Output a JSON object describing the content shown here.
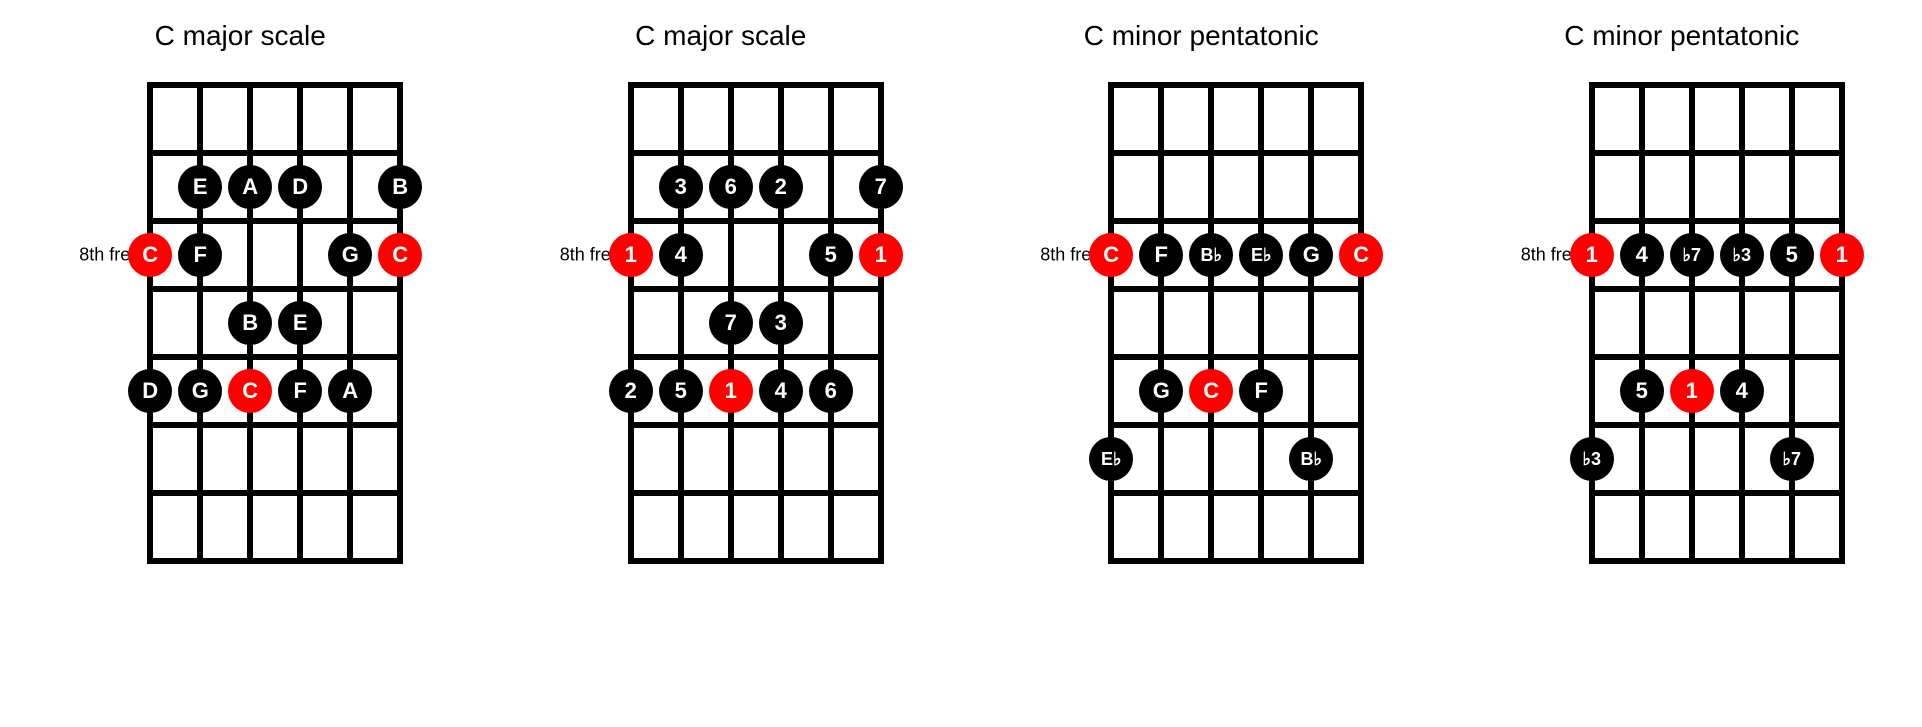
{
  "layout": {
    "strings": 6,
    "frets": 7,
    "string_spacing": 50,
    "fret_spacing": 68,
    "line_width": 6,
    "note_radius": 22,
    "note_fontsize": 22,
    "note_fontsize_flat": 18,
    "title_fontsize": 28,
    "fretlabel_fontsize": 18,
    "background": "#ffffff",
    "line_color": "#000000",
    "fret_label_row": 3
  },
  "colors": {
    "root": "#ff0000",
    "normal": "#000000",
    "text": "#ffffff"
  },
  "fret_label": "8th fret",
  "diagrams": [
    {
      "title": "C major scale",
      "notes": [
        {
          "string": 1,
          "fret": 2,
          "label": "E",
          "root": false
        },
        {
          "string": 2,
          "fret": 2,
          "label": "A",
          "root": false
        },
        {
          "string": 3,
          "fret": 2,
          "label": "D",
          "root": false
        },
        {
          "string": 5,
          "fret": 2,
          "label": "B",
          "root": false
        },
        {
          "string": 0,
          "fret": 3,
          "label": "C",
          "root": true
        },
        {
          "string": 1,
          "fret": 3,
          "label": "F",
          "root": false
        },
        {
          "string": 4,
          "fret": 3,
          "label": "G",
          "root": false
        },
        {
          "string": 5,
          "fret": 3,
          "label": "C",
          "root": true
        },
        {
          "string": 2,
          "fret": 4,
          "label": "B",
          "root": false
        },
        {
          "string": 3,
          "fret": 4,
          "label": "E",
          "root": false
        },
        {
          "string": 0,
          "fret": 5,
          "label": "D",
          "root": false
        },
        {
          "string": 1,
          "fret": 5,
          "label": "G",
          "root": false
        },
        {
          "string": 2,
          "fret": 5,
          "label": "C",
          "root": true
        },
        {
          "string": 3,
          "fret": 5,
          "label": "F",
          "root": false
        },
        {
          "string": 4,
          "fret": 5,
          "label": "A",
          "root": false
        }
      ]
    },
    {
      "title": "C major scale",
      "notes": [
        {
          "string": 1,
          "fret": 2,
          "label": "3",
          "root": false
        },
        {
          "string": 2,
          "fret": 2,
          "label": "6",
          "root": false
        },
        {
          "string": 3,
          "fret": 2,
          "label": "2",
          "root": false
        },
        {
          "string": 5,
          "fret": 2,
          "label": "7",
          "root": false
        },
        {
          "string": 0,
          "fret": 3,
          "label": "1",
          "root": true
        },
        {
          "string": 1,
          "fret": 3,
          "label": "4",
          "root": false
        },
        {
          "string": 4,
          "fret": 3,
          "label": "5",
          "root": false
        },
        {
          "string": 5,
          "fret": 3,
          "label": "1",
          "root": true
        },
        {
          "string": 2,
          "fret": 4,
          "label": "7",
          "root": false
        },
        {
          "string": 3,
          "fret": 4,
          "label": "3",
          "root": false
        },
        {
          "string": 0,
          "fret": 5,
          "label": "2",
          "root": false
        },
        {
          "string": 1,
          "fret": 5,
          "label": "5",
          "root": false
        },
        {
          "string": 2,
          "fret": 5,
          "label": "1",
          "root": true
        },
        {
          "string": 3,
          "fret": 5,
          "label": "4",
          "root": false
        },
        {
          "string": 4,
          "fret": 5,
          "label": "6",
          "root": false
        }
      ]
    },
    {
      "title": "C minor pentatonic",
      "notes": [
        {
          "string": 0,
          "fret": 3,
          "label": "C",
          "root": true
        },
        {
          "string": 1,
          "fret": 3,
          "label": "F",
          "root": false
        },
        {
          "string": 2,
          "fret": 3,
          "label": "B♭",
          "root": false
        },
        {
          "string": 3,
          "fret": 3,
          "label": "E♭",
          "root": false
        },
        {
          "string": 4,
          "fret": 3,
          "label": "G",
          "root": false
        },
        {
          "string": 5,
          "fret": 3,
          "label": "C",
          "root": true
        },
        {
          "string": 1,
          "fret": 5,
          "label": "G",
          "root": false
        },
        {
          "string": 2,
          "fret": 5,
          "label": "C",
          "root": true
        },
        {
          "string": 3,
          "fret": 5,
          "label": "F",
          "root": false
        },
        {
          "string": 0,
          "fret": 6,
          "label": "E♭",
          "root": false
        },
        {
          "string": 4,
          "fret": 6,
          "label": "B♭",
          "root": false
        }
      ]
    },
    {
      "title": "C minor pentatonic",
      "notes": [
        {
          "string": 0,
          "fret": 3,
          "label": "1",
          "root": true
        },
        {
          "string": 1,
          "fret": 3,
          "label": "4",
          "root": false
        },
        {
          "string": 2,
          "fret": 3,
          "label": "♭7",
          "root": false
        },
        {
          "string": 3,
          "fret": 3,
          "label": "♭3",
          "root": false
        },
        {
          "string": 4,
          "fret": 3,
          "label": "5",
          "root": false
        },
        {
          "string": 5,
          "fret": 3,
          "label": "1",
          "root": true
        },
        {
          "string": 1,
          "fret": 5,
          "label": "5",
          "root": false
        },
        {
          "string": 2,
          "fret": 5,
          "label": "1",
          "root": true
        },
        {
          "string": 3,
          "fret": 5,
          "label": "4",
          "root": false
        },
        {
          "string": 0,
          "fret": 6,
          "label": "♭3",
          "root": false
        },
        {
          "string": 4,
          "fret": 6,
          "label": "♭7",
          "root": false
        }
      ]
    }
  ]
}
